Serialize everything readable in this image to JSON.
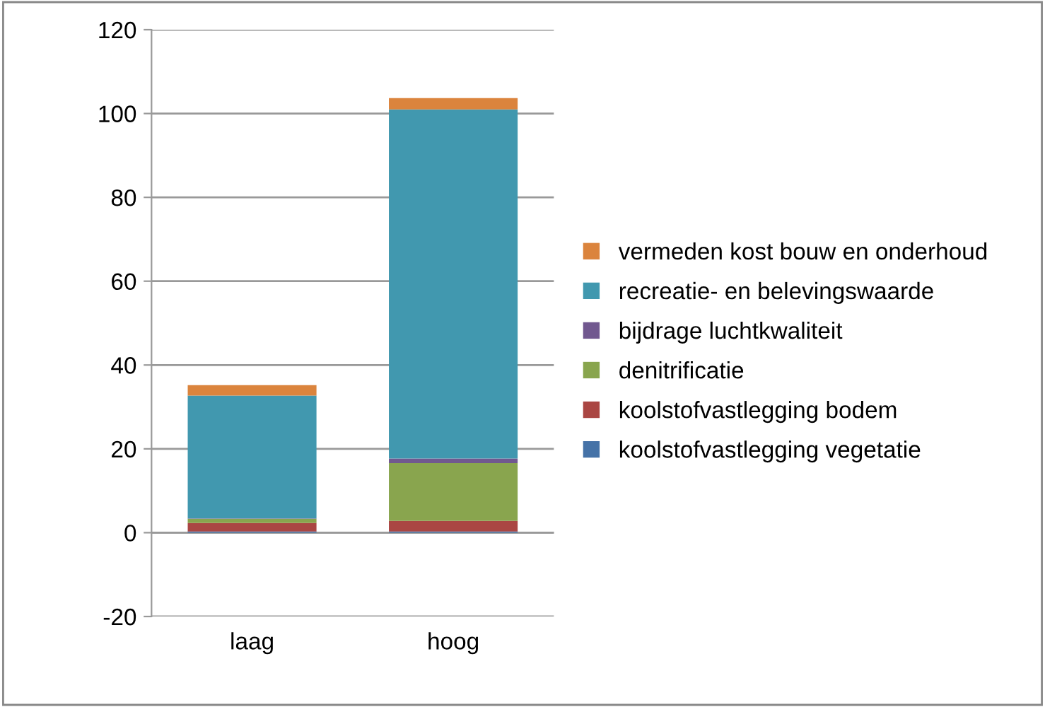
{
  "chart_data": {
    "type": "bar",
    "stacked": true,
    "categories": [
      "laag",
      "hoog"
    ],
    "series": [
      {
        "name": "koolstofvastlegging vegetatie",
        "color": "#4572a7",
        "values": [
          0.3,
          0.3
        ]
      },
      {
        "name": "koolstofvastlegging bodem",
        "color": "#aa4643",
        "values": [
          2.0,
          2.5
        ]
      },
      {
        "name": "denitrificatie",
        "color": "#89a54e",
        "values": [
          1.0,
          13.8
        ]
      },
      {
        "name": "bijdrage luchtkwaliteit",
        "color": "#71588f",
        "values": [
          0.1,
          1.1
        ]
      },
      {
        "name": "recreatie- en belevingswaarde",
        "color": "#4198af",
        "values": [
          29.3,
          83.3
        ]
      },
      {
        "name": "vermeden kost bouw en onderhoud",
        "color": "#db843d",
        "values": [
          2.5,
          2.7
        ]
      }
    ],
    "ylim": [
      -20,
      120
    ],
    "yticks": [
      -20,
      0,
      20,
      40,
      60,
      80,
      100,
      120
    ],
    "grid": "y",
    "legend": "right"
  }
}
